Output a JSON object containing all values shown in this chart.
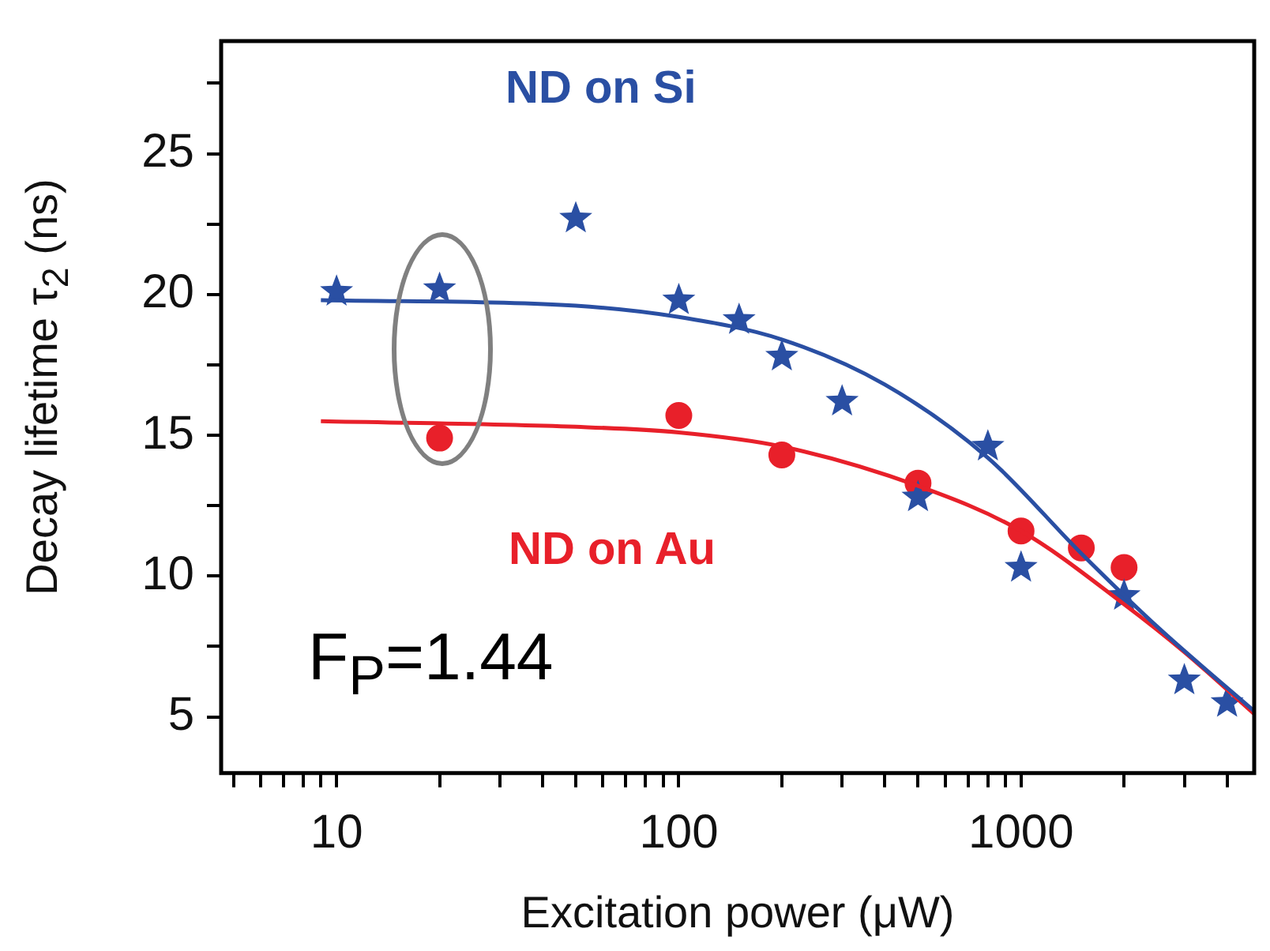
{
  "chart_data": {
    "type": "scatter",
    "xlabel": "Excitation power (μW)",
    "ylabel": "Decay lifetime τ$_{2}$ (ns)",
    "log": "x",
    "grid": false,
    "legend": false,
    "xlim": [
      4.6,
      4800
    ],
    "ylim": [
      3,
      29
    ],
    "xticks": [
      {
        "value": 5,
        "label": null
      },
      {
        "value": 6,
        "label": null
      },
      {
        "value": 7,
        "label": null
      },
      {
        "value": 8,
        "label": null
      },
      {
        "value": 9,
        "label": null
      },
      10,
      {
        "value": 20,
        "label": null
      },
      {
        "value": 30,
        "label": null
      },
      {
        "value": 40,
        "label": null
      },
      {
        "value": 50,
        "label": null
      },
      {
        "value": 60,
        "label": null
      },
      {
        "value": 70,
        "label": null
      },
      {
        "value": 80,
        "label": null
      },
      {
        "value": 90,
        "label": null
      },
      100,
      {
        "value": 200,
        "label": null
      },
      {
        "value": 300,
        "label": null
      },
      {
        "value": 400,
        "label": null
      },
      {
        "value": 500,
        "label": null
      },
      {
        "value": 600,
        "label": null
      },
      {
        "value": 700,
        "label": null
      },
      {
        "value": 800,
        "label": null
      },
      {
        "value": 900,
        "label": null
      },
      1000,
      {
        "value": 2000,
        "label": null
      },
      {
        "value": 3000,
        "label": null
      },
      {
        "value": 4000,
        "label": null
      }
    ],
    "yticks": [
      5,
      {
        "value": 7.5,
        "label": null
      },
      10,
      {
        "value": 12.5,
        "label": null
      },
      15,
      {
        "value": 17.5,
        "label": null
      },
      20,
      {
        "value": 22.5,
        "label": null
      },
      25,
      {
        "value": 27.5,
        "label": null
      }
    ],
    "annotations": [
      "F$_{P}$=1.44"
    ],
    "series": [
      {
        "name": "ND on Si",
        "type": "scatter",
        "marker": "star",
        "color": "#2a4fa3",
        "x": [
          10,
          20,
          50,
          100,
          150,
          200,
          300,
          500,
          800,
          1000,
          2000,
          3000,
          4000
        ],
        "values": [
          20.1,
          20.2,
          22.7,
          19.8,
          19.1,
          17.8,
          16.2,
          12.8,
          14.6,
          10.3,
          9.3,
          6.3,
          5.5
        ]
      },
      {
        "name": "ND on Au",
        "type": "scatter",
        "marker": "circle",
        "color": "#e8202a",
        "x": [
          20,
          100,
          200,
          500,
          1000,
          1500,
          2000
        ],
        "values": [
          14.9,
          15.7,
          14.3,
          13.3,
          11.6,
          11.0,
          10.3
        ]
      },
      {
        "type": "line",
        "marker": "none",
        "color": "#2a4fa3",
        "x": [
          9,
          50,
          100,
          200,
          400,
          800,
          1500,
          2500,
          4800
        ],
        "values": [
          19.8,
          19.6,
          19.2,
          18.4,
          16.8,
          14.2,
          10.8,
          8.2,
          5.2
        ]
      },
      {
        "type": "line",
        "marker": "none",
        "color": "#e8202a",
        "x": [
          9,
          50,
          100,
          200,
          500,
          1000,
          2000,
          3000,
          4800
        ],
        "values": [
          15.5,
          15.3,
          15.1,
          14.6,
          13.2,
          11.6,
          9.0,
          7.3,
          5.1
        ]
      }
    ]
  }
}
